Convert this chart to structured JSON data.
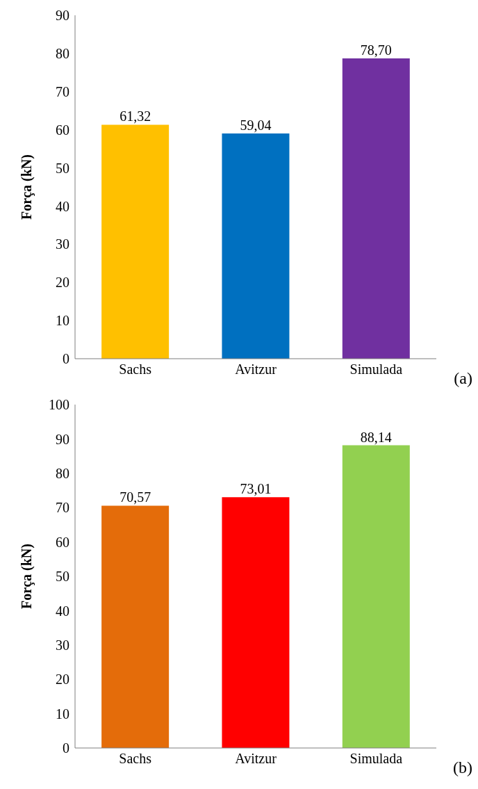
{
  "chart_data": [
    {
      "type": "bar",
      "ylabel": "Força (kN)",
      "categories": [
        "Sachs",
        "Avitzur",
        "Simulada"
      ],
      "values": [
        61.32,
        59.04,
        78.7
      ],
      "colors": [
        "#ffc000",
        "#0070c0",
        "#7030a0"
      ],
      "value_labels": [
        "61,32",
        "59,04",
        "78,70"
      ],
      "ylim": [
        0,
        90
      ],
      "yticks": [
        0,
        10,
        20,
        30,
        40,
        50,
        60,
        70,
        80,
        90
      ],
      "grid": false,
      "legend": false,
      "annotations": [
        "(a)"
      ]
    },
    {
      "type": "bar",
      "ylabel": "Força (kN)",
      "categories": [
        "Sachs",
        "Avitzur",
        "Simulada"
      ],
      "values": [
        70.57,
        73.01,
        88.14
      ],
      "colors": [
        "#e46c0a",
        "#ff0000",
        "#92d050"
      ],
      "value_labels": [
        "70,57",
        "73,01",
        "88,14"
      ],
      "ylim": [
        0,
        100
      ],
      "yticks": [
        0,
        10,
        20,
        30,
        40,
        50,
        60,
        70,
        80,
        90,
        100
      ],
      "grid": false,
      "legend": false,
      "annotations": [
        "(b)"
      ]
    }
  ]
}
